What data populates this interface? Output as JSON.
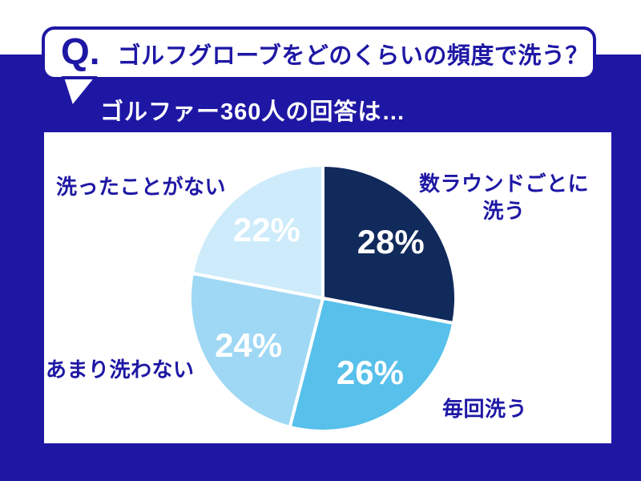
{
  "question_bubble": {
    "q_label": "Q.",
    "title": "ゴルフグローブをどのくらいの頻度で洗う？"
  },
  "subtitle": "ゴルファー360人の回答は…",
  "colors": {
    "background": "#1e17a4",
    "text_blue": "#1e17a4",
    "card": "#ffffff",
    "value_label_text": "#ffffff"
  },
  "chart_data": {
    "type": "pie",
    "title": "ゴルフグローブをどのくらいの頻度で洗う？",
    "subtitle": "ゴルファー360人の回答は…",
    "start_angle_deg": 0,
    "direction": "clockwise",
    "separator": "4px white gaps between slices",
    "legend_position": "labels around pie",
    "slices": [
      {
        "label": "数ラウンドごとに洗う",
        "label_lines": [
          "数ラウンドごとに",
          "洗う"
        ],
        "value": 28,
        "display": "28%",
        "color": "#112a5c",
        "label_position": "top-right"
      },
      {
        "label": "毎回洗う",
        "label_lines": [
          "毎回洗う"
        ],
        "value": 26,
        "display": "26%",
        "color": "#57c0eb",
        "label_position": "bottom-right"
      },
      {
        "label": "あまり洗わない",
        "label_lines": [
          "あまり洗わない"
        ],
        "value": 24,
        "display": "24%",
        "color": "#9fd8f4",
        "label_position": "left"
      },
      {
        "label": "洗ったことがない",
        "label_lines": [
          "洗ったことがない"
        ],
        "value": 22,
        "display": "22%",
        "color": "#cdebfa",
        "label_position": "top-left"
      }
    ]
  }
}
